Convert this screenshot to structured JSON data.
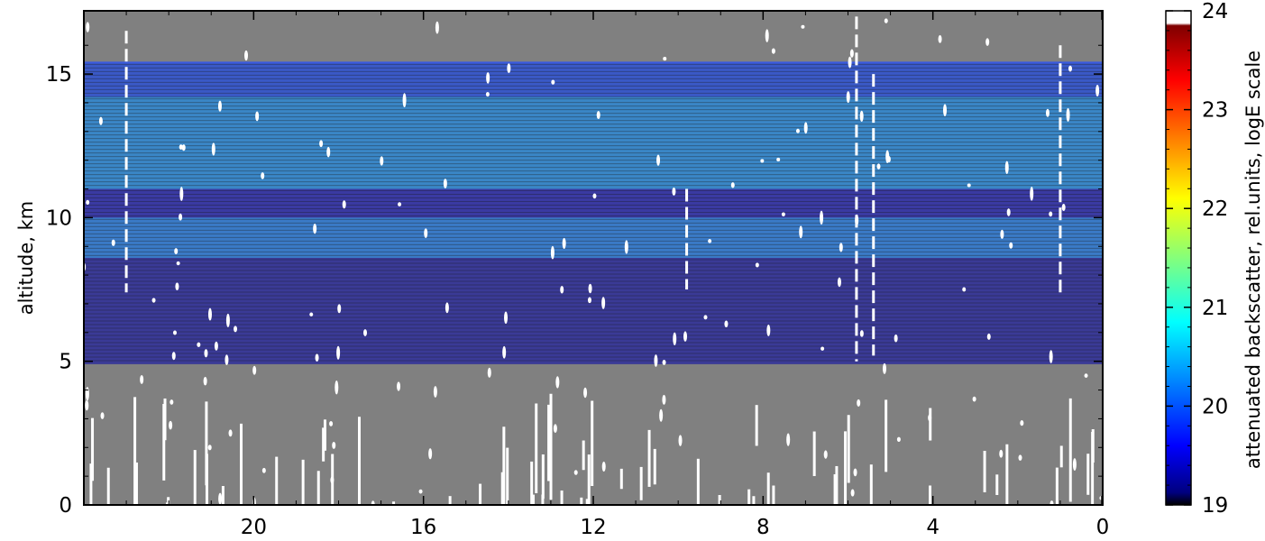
{
  "chart_data": {
    "type": "heatmap",
    "title": "",
    "xlabel": "",
    "ylabel": "altitude, km",
    "xlim": [
      0,
      24
    ],
    "x_reversed": true,
    "ylim": [
      0,
      17.2
    ],
    "x_ticks": [
      4,
      8,
      12,
      16,
      20,
      0
    ],
    "y_ticks": [
      0,
      5,
      10,
      15
    ],
    "colorbar": {
      "label": "attenuated backscatter, rel.units, logE scale",
      "range": [
        19,
        24
      ],
      "ticks": [
        19,
        20,
        21,
        22,
        23,
        24
      ],
      "colormap": "jet"
    },
    "background_color": "#808080",
    "layers": [
      {
        "y0": 14.2,
        "y1": 15.4,
        "value": 19.9
      },
      {
        "y0": 11.0,
        "y1": 14.2,
        "value": 20.3
      },
      {
        "y0": 10.0,
        "y1": 11.0,
        "value": 19.3
      },
      {
        "y0": 8.6,
        "y1": 10.0,
        "value": 20.2
      },
      {
        "y0": 4.9,
        "y1": 8.6,
        "value": 19.2
      }
    ]
  }
}
